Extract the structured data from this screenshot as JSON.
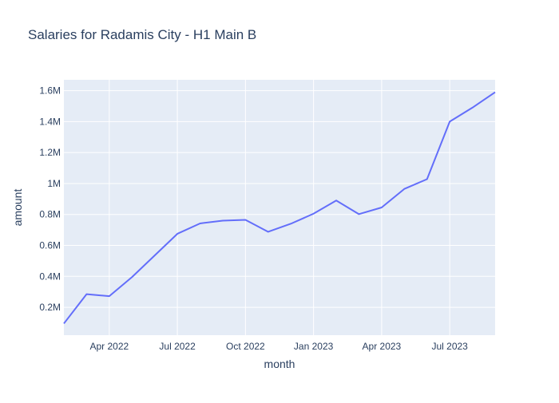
{
  "chart_data": {
    "type": "line",
    "title": "Salaries for Radamis City - H1 Main B",
    "xlabel": "month",
    "ylabel": "amount",
    "x": [
      "2022-02",
      "2022-03",
      "2022-04",
      "2022-05",
      "2022-06",
      "2022-07",
      "2022-08",
      "2022-09",
      "2022-10",
      "2022-11",
      "2022-12",
      "2023-01",
      "2023-02",
      "2023-03",
      "2023-04",
      "2023-05",
      "2023-06",
      "2023-07",
      "2023-08",
      "2023-09"
    ],
    "series": [
      {
        "values": [
          95000,
          285000,
          272000,
          395000,
          535000,
          675000,
          742000,
          760000,
          765000,
          688000,
          740000,
          805000,
          890000,
          802000,
          845000,
          965000,
          1028000,
          1400000,
          1490000,
          1590000
        ]
      }
    ],
    "xticks": [
      {
        "x": "2022-04",
        "label": "Apr 2022"
      },
      {
        "x": "2022-07",
        "label": "Jul 2022"
      },
      {
        "x": "2022-10",
        "label": "Oct 2022"
      },
      {
        "x": "2023-01",
        "label": "Jan 2023"
      },
      {
        "x": "2023-04",
        "label": "Apr 2023"
      },
      {
        "x": "2023-07",
        "label": "Jul 2023"
      }
    ],
    "yticks": [
      {
        "y": 200000,
        "label": "0.2M"
      },
      {
        "y": 400000,
        "label": "0.4M"
      },
      {
        "y": 600000,
        "label": "0.6M"
      },
      {
        "y": 800000,
        "label": "0.8M"
      },
      {
        "y": 1000000,
        "label": "1M"
      },
      {
        "y": 1200000,
        "label": "1.2M"
      },
      {
        "y": 1400000,
        "label": "1.4M"
      },
      {
        "y": 1600000,
        "label": "1.6M"
      }
    ],
    "xlim": [
      "2022-02",
      "2023-09"
    ],
    "ylim": [
      20000,
      1670000
    ],
    "grid": true,
    "legend": "none",
    "colors": {
      "line": "#636efa",
      "plot_bg": "#e5ecf6",
      "grid": "#ffffff",
      "text": "#2a3f5f"
    }
  }
}
